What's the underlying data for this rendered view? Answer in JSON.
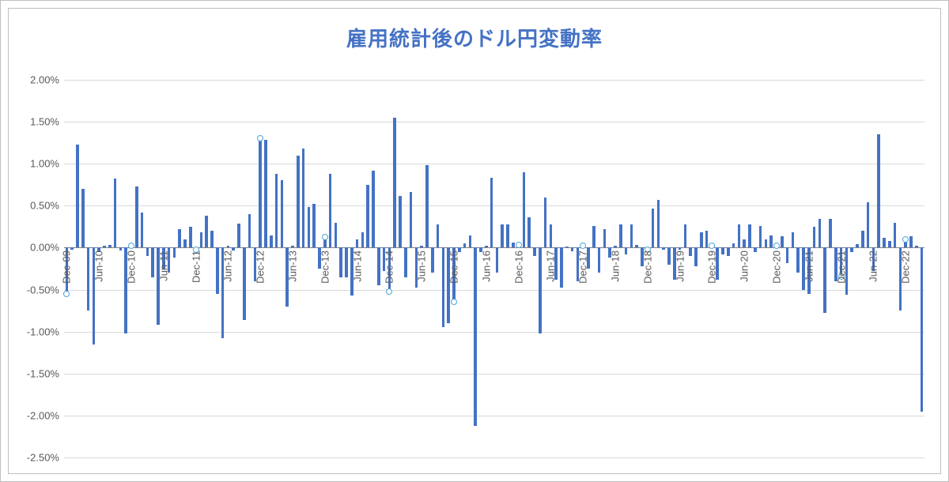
{
  "chart": {
    "type": "bar",
    "title": "雇用統計後のドル円変動率",
    "title_color": "#4472c4",
    "title_fontsize": 26,
    "background_color": "#ffffff",
    "border_color": "#bfbfbf",
    "grid_color": "#d9d9d9",
    "axis_color": "#808080",
    "axis_label_color": "#595959",
    "bar_color": "#4472c4",
    "marker_fill": "#ffffff",
    "marker_stroke": "#4da6d9",
    "marker_radius": 3,
    "ylim": [
      -2.5,
      2.0
    ],
    "ytick_step": 0.5,
    "ytick_format_suffix": "%",
    "yticks": [
      "2.00%",
      "1.50%",
      "1.00%",
      "0.50%",
      "0.00%",
      "-0.50%",
      "-1.00%",
      "-1.50%",
      "-2.00%",
      "-2.50%"
    ],
    "x_labels_visible": [
      {
        "idx": 0,
        "text": "Dec-09"
      },
      {
        "idx": 6,
        "text": "Jun-10"
      },
      {
        "idx": 12,
        "text": "Dec-10"
      },
      {
        "idx": 18,
        "text": "Jun-11"
      },
      {
        "idx": 24,
        "text": "Dec-11"
      },
      {
        "idx": 30,
        "text": "Jun-12"
      },
      {
        "idx": 36,
        "text": "Dec-12"
      },
      {
        "idx": 42,
        "text": "Jun-13"
      },
      {
        "idx": 48,
        "text": "Dec-13"
      },
      {
        "idx": 54,
        "text": "Jun-14"
      },
      {
        "idx": 60,
        "text": "Dec-14"
      },
      {
        "idx": 66,
        "text": "Jun-15"
      },
      {
        "idx": 72,
        "text": "Dec-15"
      },
      {
        "idx": 78,
        "text": "Jun-16"
      },
      {
        "idx": 84,
        "text": "Dec-16"
      },
      {
        "idx": 90,
        "text": "Jun-17"
      },
      {
        "idx": 96,
        "text": "Dec-17"
      },
      {
        "idx": 102,
        "text": "Jun-18"
      },
      {
        "idx": 108,
        "text": "Dec-18"
      },
      {
        "idx": 114,
        "text": "Jun-19"
      },
      {
        "idx": 120,
        "text": "Dec-19"
      },
      {
        "idx": 126,
        "text": "Jun-20"
      },
      {
        "idx": 132,
        "text": "Dec-20"
      },
      {
        "idx": 138,
        "text": "Jun-21"
      },
      {
        "idx": 144,
        "text": "Dec-21"
      },
      {
        "idx": 150,
        "text": "Jun-22"
      },
      {
        "idx": 156,
        "text": "Dec-22"
      }
    ],
    "bar_width_ratio": 0.55,
    "marker_indices": [
      0,
      12,
      24,
      36,
      48,
      60,
      72,
      84,
      96,
      108,
      120,
      132,
      144,
      156
    ],
    "values": [
      -0.55,
      -0.02,
      1.23,
      0.7,
      -0.75,
      -1.15,
      -0.05,
      0.02,
      0.03,
      0.82,
      -0.03,
      -1.02,
      0.02,
      0.73,
      0.42,
      -0.1,
      -0.35,
      -0.92,
      -0.25,
      -0.3,
      -0.12,
      0.22,
      0.1,
      0.25,
      -0.02,
      0.18,
      0.38,
      0.2,
      -0.55,
      -1.08,
      0.02,
      -0.03,
      0.29,
      -0.86,
      0.4,
      -0.4,
      1.3,
      1.28,
      0.15,
      0.88,
      0.8,
      -0.7,
      0.02,
      1.1,
      1.18,
      0.48,
      0.52,
      -0.25,
      0.13,
      0.88,
      0.3,
      -0.35,
      -0.35,
      -0.57,
      0.1,
      0.18,
      0.75,
      0.92,
      -0.45,
      -0.28,
      -0.52,
      1.55,
      0.62,
      -0.35,
      0.66,
      -0.48,
      0.02,
      0.98,
      -0.3,
      0.28,
      -0.95,
      -0.9,
      -0.65,
      -0.05,
      0.05,
      0.15,
      -2.12,
      -0.05,
      0.02,
      0.83,
      -0.3,
      0.28,
      0.28,
      0.06,
      0.03,
      0.9,
      0.36,
      -0.1,
      -1.02,
      0.6,
      0.28,
      -0.38,
      -0.48,
      0.01,
      -0.04,
      -0.4,
      0.02,
      -0.25,
      0.26,
      -0.3,
      0.22,
      -0.12,
      0.02,
      0.28,
      -0.08,
      0.28,
      0.03,
      -0.22,
      -0.02,
      0.47,
      0.57,
      -0.02,
      -0.2,
      -0.38,
      -0.02,
      0.28,
      -0.1,
      -0.22,
      0.18,
      0.2,
      0.02,
      -0.38,
      -0.08,
      -0.1,
      0.05,
      0.28,
      0.1,
      0.28,
      -0.05,
      0.26,
      0.1,
      0.15,
      0.02,
      0.14,
      -0.18,
      0.18,
      -0.3,
      -0.5,
      -0.55,
      0.25,
      0.34,
      -0.78,
      0.34,
      -0.4,
      -0.34,
      -0.56,
      -0.05,
      0.04,
      0.2,
      0.54,
      -0.28,
      1.35,
      0.12,
      0.08,
      0.3,
      -0.75,
      0.1,
      0.14,
      0.02,
      -1.95
    ]
  }
}
